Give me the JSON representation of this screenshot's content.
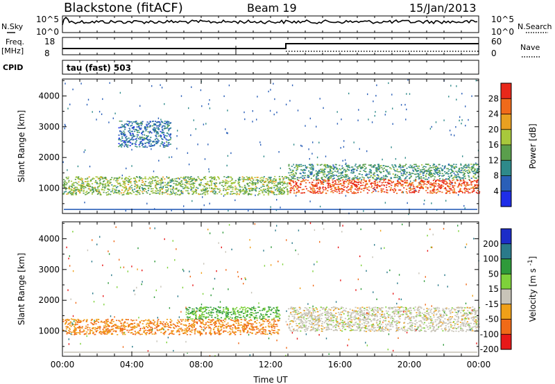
{
  "header": {
    "station": "Blackstone (fitACF)",
    "beam": "Beam 19",
    "date": "15/Jan/2013"
  },
  "strip1": {
    "left_label": "N.Sky",
    "left_ticks": [
      "10^5",
      "10^0"
    ],
    "right_label": "N.Search",
    "right_ticks": [
      "10^5",
      "10^0"
    ]
  },
  "strip2": {
    "left_label_line1": "Freq.",
    "left_label_line2": "[MHz]",
    "left_ticks": [
      "18",
      "8"
    ],
    "right_label": "Nave",
    "right_ticks": [
      "60",
      "0"
    ]
  },
  "cpid": {
    "label": "CPID",
    "mode": "tau (fast) 503"
  },
  "chart_data": [
    {
      "type": "heatmap",
      "title": "",
      "xlabel": "",
      "ylabel": "Slant Range [km]",
      "x_ticks": [
        "00:00",
        "04:00",
        "08:00",
        "12:00",
        "16:00",
        "20:00",
        "00:00"
      ],
      "x_range_hours": [
        0,
        24
      ],
      "y_ticks": [
        1000,
        2000,
        3000,
        4000
      ],
      "ylim": [
        180,
        4550
      ],
      "colorbar": {
        "label": "Power [dB]",
        "ticks": [
          4,
          8,
          12,
          16,
          20,
          24,
          28
        ],
        "colors": [
          "#1e2de8",
          "#2a5fb8",
          "#2e8a8a",
          "#5a9e4c",
          "#a8c83c",
          "#e8a020",
          "#f06a1a",
          "#e8281a"
        ]
      },
      "regions": [
        {
          "t_start": 0.0,
          "t_end": 13.0,
          "range_low": 800,
          "range_high": 1400,
          "level": 16
        },
        {
          "t_start": 3.2,
          "t_end": 6.2,
          "range_low": 2350,
          "range_high": 3200,
          "level": 8
        },
        {
          "t_start": 13.0,
          "t_end": 24.0,
          "range_low": 850,
          "range_high": 1300,
          "level": 28
        },
        {
          "t_start": 13.0,
          "t_end": 24.0,
          "range_low": 1300,
          "range_high": 1800,
          "level": 12
        }
      ]
    },
    {
      "type": "heatmap",
      "title": "",
      "xlabel": "Time UT",
      "ylabel": "Slant Range [km]",
      "x_ticks": [
        "00:00",
        "04:00",
        "08:00",
        "12:00",
        "16:00",
        "20:00",
        "00:00"
      ],
      "x_range_hours": [
        0,
        24
      ],
      "y_ticks": [
        1000,
        2000,
        3000,
        4000
      ],
      "ylim": [
        180,
        4550
      ],
      "colorbar": {
        "label": "Velocity [m s^-1]",
        "ticks": [
          200,
          100,
          50,
          15,
          -15,
          -50,
          -100,
          -200
        ],
        "colors": [
          "#1c2dc8",
          "#2a7a8a",
          "#2e9a3a",
          "#7ed13a",
          "#c8c4b8",
          "#f0a018",
          "#f06a18",
          "#e81818"
        ]
      },
      "regions": [
        {
          "t_start": 0.0,
          "t_end": 12.5,
          "range_low": 900,
          "range_high": 1400,
          "level": -50
        },
        {
          "t_start": 7.0,
          "t_end": 12.5,
          "range_low": 1400,
          "range_high": 1800,
          "level": 50
        },
        {
          "t_start": 13.0,
          "t_end": 24.0,
          "range_low": 1000,
          "range_high": 1800,
          "level": 0
        }
      ]
    }
  ]
}
